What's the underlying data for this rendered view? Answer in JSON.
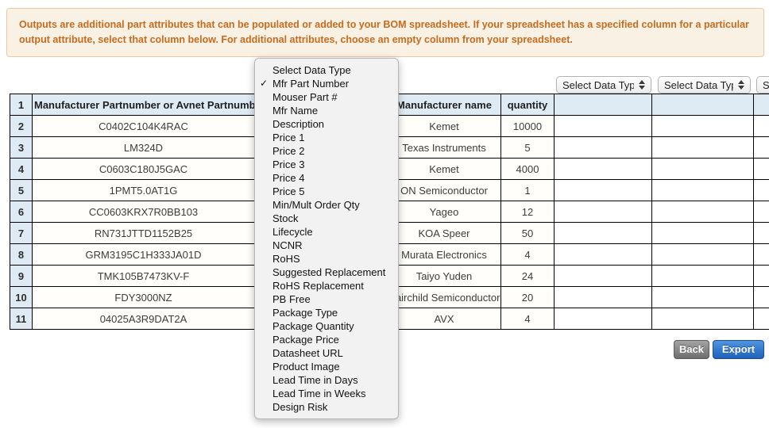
{
  "banner": {
    "text": "Outputs are additional part attributes that can be populated or added to your BOM spreadsheet. If your spreadsheet has a specified column for a particular output attribute, select that column below. For additional attributes, choose an empty column from your spreadsheet."
  },
  "column_selects": [
    {
      "value": "Select Data Type"
    },
    {
      "value": "Select Data Type"
    },
    {
      "value": "Select Data Type"
    }
  ],
  "data_type_menu": {
    "items": [
      {
        "label": "Select Data Type",
        "checked": false
      },
      {
        "label": "Mfr Part Number",
        "checked": true
      },
      {
        "label": "Mouser Part #",
        "checked": false
      },
      {
        "label": "Mfr Name",
        "checked": false
      },
      {
        "label": "Description",
        "checked": false
      },
      {
        "label": "Price 1",
        "checked": false
      },
      {
        "label": "Price 2",
        "checked": false
      },
      {
        "label": "Price 3",
        "checked": false
      },
      {
        "label": "Price 4",
        "checked": false
      },
      {
        "label": "Price 5",
        "checked": false
      },
      {
        "label": "Min/Mult Order Qty",
        "checked": false
      },
      {
        "label": "Stock",
        "checked": false
      },
      {
        "label": "Lifecycle",
        "checked": false
      },
      {
        "label": "NCNR",
        "checked": false
      },
      {
        "label": "RoHS",
        "checked": false
      },
      {
        "label": "Suggested Replacement",
        "checked": false
      },
      {
        "label": "RoHS Replacement",
        "checked": false
      },
      {
        "label": "PB Free",
        "checked": false
      },
      {
        "label": "Package Type",
        "checked": false
      },
      {
        "label": "Package Quantity",
        "checked": false
      },
      {
        "label": "Package Price",
        "checked": false
      },
      {
        "label": "Datasheet URL",
        "checked": false
      },
      {
        "label": "Product Image",
        "checked": false
      },
      {
        "label": "Lead Time in Days",
        "checked": false
      },
      {
        "label": "Lead Time in Weeks",
        "checked": false
      },
      {
        "label": "Design Risk",
        "checked": false
      }
    ]
  },
  "table": {
    "header_row_number": "1",
    "columns": {
      "part": "Manufacturer Partnumber or Avnet Partnumber",
      "manufacturer": "Manufacturer name",
      "quantity": "quantity"
    },
    "rows": [
      {
        "num": "2",
        "part": "C0402C104K4RAC",
        "manufacturer": "Kemet",
        "quantity": "10000"
      },
      {
        "num": "3",
        "part": "LM324D",
        "manufacturer": "Texas Instruments",
        "quantity": "5"
      },
      {
        "num": "4",
        "part": "C0603C180J5GAC",
        "manufacturer": "Kemet",
        "quantity": "4000"
      },
      {
        "num": "5",
        "part": "1PMT5.0AT1G",
        "manufacturer": "ON Semiconductor",
        "quantity": "1"
      },
      {
        "num": "6",
        "part": "CC0603KRX7R0BB103",
        "manufacturer": "Yageo",
        "quantity": "12"
      },
      {
        "num": "7",
        "part": "RN731JTTD1152B25",
        "manufacturer": "KOA Speer",
        "quantity": "50"
      },
      {
        "num": "8",
        "part": "GRM3195C1H333JA01D",
        "manufacturer": "Murata Electronics",
        "quantity": "4"
      },
      {
        "num": "9",
        "part": "TMK105B7473KV-F",
        "manufacturer": "Taiyo Yuden",
        "quantity": "24"
      },
      {
        "num": "10",
        "part": "FDY3000NZ",
        "manufacturer": "Fairchild Semiconductor",
        "quantity": "20"
      },
      {
        "num": "11",
        "part": "04025A3R9DAT2A",
        "manufacturer": "AVX",
        "quantity": "4"
      }
    ]
  },
  "buttons": {
    "back": "Back",
    "export": "Export"
  },
  "colors": {
    "banner_bg": "#f9f1e3",
    "banner_border": "#e8cba1",
    "banner_text": "#c76b1e",
    "table_header_bg": "#dfebf4",
    "export_blue": "#2368c0",
    "back_gray": "#7d7d7d"
  }
}
